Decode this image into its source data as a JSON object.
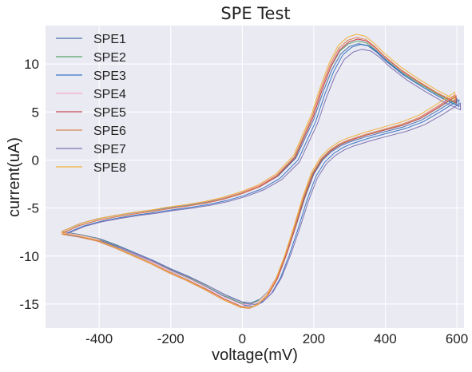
{
  "chart_data": {
    "type": "line",
    "title": "SPE Test",
    "xlabel": "voltage(mV)",
    "ylabel": "current(uA)",
    "xlim": [
      -550,
      620
    ],
    "ylim": [
      -17.5,
      14
    ],
    "xticks": [
      "-400",
      "-200",
      "0",
      "200",
      "400",
      "600"
    ],
    "yticks": [
      "10",
      "5",
      "0",
      "-5",
      "-10",
      "-15"
    ],
    "grid": true,
    "legend_position": "top-left",
    "forward_scan": {
      "x": [
        -500,
        -450,
        -400,
        -350,
        -300,
        -250,
        -200,
        -150,
        -100,
        -50,
        0,
        50,
        100,
        150,
        200,
        225,
        250,
        275,
        300,
        325,
        350,
        375,
        400,
        450,
        500,
        550,
        600
      ],
      "y": [
        -7.5,
        -6.7,
        -6.2,
        -5.85,
        -5.55,
        -5.3,
        -5.0,
        -4.75,
        -4.45,
        -4.05,
        -3.5,
        -2.8,
        -1.7,
        0.2,
        4.3,
        7.1,
        9.5,
        11.2,
        12.0,
        12.3,
        12.1,
        11.4,
        10.5,
        9.0,
        7.8,
        6.7,
        5.8
      ]
    },
    "reverse_scan": {
      "x": [
        600,
        550,
        500,
        450,
        400,
        350,
        300,
        275,
        250,
        225,
        200,
        175,
        150,
        125,
        100,
        75,
        50,
        25,
        0,
        -50,
        -100,
        -150,
        -200,
        -250,
        -300,
        -350,
        -400,
        -450,
        -500
      ],
      "y": [
        6.5,
        5.3,
        4.2,
        3.5,
        3.0,
        2.5,
        1.9,
        1.5,
        0.9,
        0.0,
        -1.5,
        -4.0,
        -7.0,
        -9.8,
        -12.2,
        -13.8,
        -14.7,
        -15.1,
        -15.0,
        -14.2,
        -13.2,
        -12.3,
        -11.5,
        -10.6,
        -9.8,
        -9.0,
        -8.3,
        -7.9,
        -7.6
      ]
    },
    "series": [
      {
        "name": "SPE1",
        "color": "#4c72b0",
        "dx": 0,
        "dy": 0,
        "fy": 0.985
      },
      {
        "name": "SPE2",
        "color": "#55a868",
        "dx": -3,
        "dy": 0.1,
        "fy": 1.0
      },
      {
        "name": "SPE3",
        "color": "#3a76c4",
        "dx": 6,
        "dy": -0.2,
        "fy": 0.995
      },
      {
        "name": "SPE4",
        "color": "#f4a6c6",
        "dx": -4,
        "dy": 0.15,
        "fy": 1.01
      },
      {
        "name": "SPE5",
        "color": "#c44e52",
        "dx": -2,
        "dy": 0.05,
        "fy": 1.02
      },
      {
        "name": "SPE6",
        "color": "#dd8452",
        "dx": -5,
        "dy": 0.1,
        "fy": 1.03
      },
      {
        "name": "SPE7",
        "color": "#8172b2",
        "dx": 10,
        "dy": -0.4,
        "fy": 0.97
      },
      {
        "name": "SPE8",
        "color": "#f0b13b",
        "dx": -6,
        "dy": 0.3,
        "fy": 1.04
      }
    ]
  }
}
